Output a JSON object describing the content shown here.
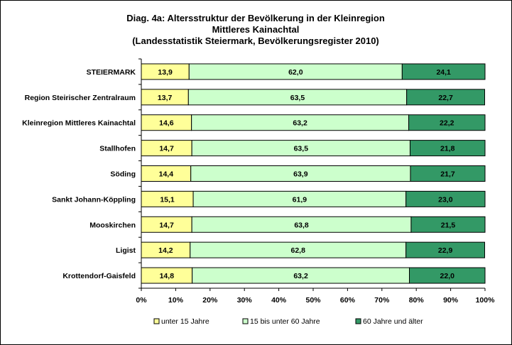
{
  "chart_data": {
    "type": "bar",
    "orientation": "horizontal-stacked-100",
    "title": [
      "Diag. 4a: Altersstruktur  der Bevölkerung  in der Kleinregion",
      "Mittleres Kainachtal",
      "(Landesstatistik  Steiermark,  Bevölkerungsregister  2010)"
    ],
    "categories": [
      "STEIERMARK",
      "Region Steirischer Zentralraum",
      "Kleinregion Mittleres Kainachtal",
      "Stallhofen",
      "Söding",
      "Sankt Johann-Köppling",
      "Mooskirchen",
      "Ligist",
      "Krottendorf-Gaisfeld"
    ],
    "series": [
      {
        "name": "unter 15 Jahre",
        "color": "#ffff99",
        "values": [
          13.9,
          13.7,
          14.6,
          14.7,
          14.4,
          15.1,
          14.7,
          14.2,
          14.8
        ],
        "labels": [
          "13,9",
          "13,7",
          "14,6",
          "14,7",
          "14,4",
          "15,1",
          "14,7",
          "14,2",
          "14,8"
        ]
      },
      {
        "name": "15 bis unter 60 Jahre",
        "color": "#ccffcc",
        "values": [
          62.0,
          63.5,
          63.2,
          63.5,
          63.9,
          61.9,
          63.8,
          62.8,
          63.2
        ],
        "labels": [
          "62,0",
          "63,5",
          "63,2",
          "63,5",
          "63,9",
          "61,9",
          "63,8",
          "62,8",
          "63,2"
        ]
      },
      {
        "name": "60 Jahre und älter",
        "color": "#339966",
        "values": [
          24.1,
          22.7,
          22.2,
          21.8,
          21.7,
          23.0,
          21.5,
          22.9,
          22.0
        ],
        "labels": [
          "24,1",
          "22,7",
          "22,2",
          "21,8",
          "21,7",
          "23,0",
          "21,5",
          "22,9",
          "22,0"
        ]
      }
    ],
    "xlim": [
      0,
      100
    ],
    "xticks": [
      "0%",
      "10%",
      "20%",
      "30%",
      "40%",
      "50%",
      "60%",
      "70%",
      "80%",
      "90%",
      "100%"
    ],
    "legend_position": "bottom",
    "grid": false
  }
}
